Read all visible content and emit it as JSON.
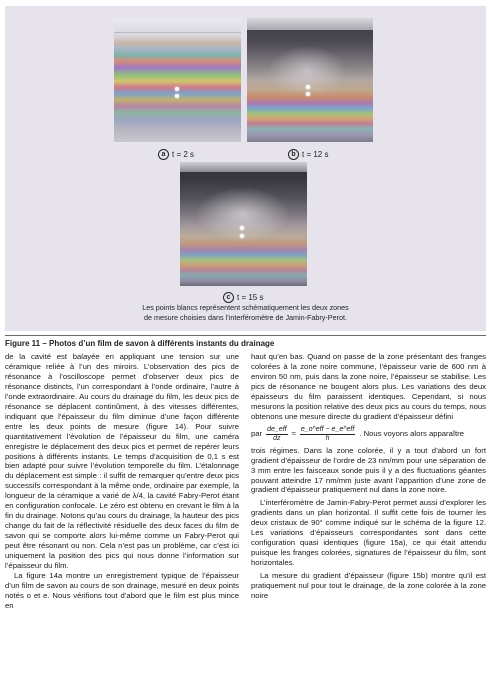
{
  "figure": {
    "panels": [
      {
        "letter": "a",
        "caption": "t = 2 s"
      },
      {
        "letter": "b",
        "caption": "t = 12 s"
      },
      {
        "letter": "c",
        "caption": "t = 15 s"
      }
    ],
    "note_line1": "Les points blancs représentent schématiquement les deux zones",
    "note_line2": "de mesure choisies dans l’interféromètre de Jamin-Fabry-Perot.",
    "title": "Figure 11 – Photos d’un film de savon à différents instants du drainage"
  },
  "left_column": {
    "p1": "de la cavité est balayée en appliquant une tension sur une céramique reliée à l’un des miroirs. L’observation des pics de résonance à l’oscilloscope permet d’observer deux pics de résonance distincts, l’un correspondant à l’onde ordinaire, l’autre à l’onde extraordinaire. Au cours du drainage du film, les deux pics de résonance se déplacent continûment, à des vitesses différentes, indiquant que l’épaisseur du film diminue d’une façon différente entre les deux points de mesure (figure 14). Pour suivre quantitativement l’évolution de l’épaisseur du film, une caméra enregistre le déplacement des deux pics et permet de repérer leurs positions à différents instants. Le temps d’acquisition de 0,1 s est bien adapté pour suivre l’évolution temporelle du film. L’étalonnage du déplacement est simple : il suffit de remarquer qu’entre deux pics successifs correspondant à la même onde, ordinaire par exemple, la longueur de la céramique a varié de λ/4, la cavité Fabry-Perot étant en configuration confocale. Le zéro est obtenu en crevant le film à la fin du drainage. Notons qu’au cours du drainage, la hauteur des pics change du fait de la réflectivité résiduelle des deux faces du film de savon qui se comporte alors lui-même comme un Fabry-Perot qui peut être résonant ou non. Cela n’est pas un problème, car c’est ici uniquement la position des pics qui nous donne l’information sur l’épaisseur du film.",
    "p2": "La figure 14a montre un enregistrement typique de l’épaisseur d’un film de savon au cours de son drainage, mesuré en deux points notés o et e. Nous vérifions tout d’abord que le film est plus mince en"
  },
  "right_column": {
    "p1": "haut qu’en bas. Quand on passe de la zone présentant des franges colorées à la zone noire commune, l’épaisseur varie de 600 nm à environ 50 nm, puis dans la zone noire, l’épaisseur se stabilise. Les pics de résonance ne bougent alors plus. Les variations des deux épaisseurs du film paraissent identiques. Cependant, si nous mesurons la position relative des deux pics au cours du temps, nous obtenons une mesure directe du gradient d’épaisseur défini",
    "eq_prefix": "par",
    "eq_lhs_num": "de_eff",
    "eq_lhs_den": "dz",
    "eq_approx": "≈",
    "eq_rhs_num": "e_o^eff − e_e^eff",
    "eq_rhs_den": "h",
    "eq_suffix": ". Nous voyons alors apparaître",
    "p2": "trois régimes. Dans la zone colorée, il y a tout d’abord un fort gradient d’épaisseur de l’ordre de 23 nm/mm pour une séparation de 3 mm entre les faisceaux sonde puis il y a des fluctuations géantes pouvant atteindre 17 nm/mm juste avant l’apparition d’une zone de gradient d’épaisseur pratiquement nul dans la zone noire.",
    "p3": "L’interféromètre de Jamin-Fabry-Perot permet aussi d’explorer les gradients dans un plan horizontal. Il suffit cette fois de tourner les deux cristaux de 90° comme indiqué sur le schéma de la figure 12. Les variations d’épaisseurs correspondantes sont dans cette configuration quasi identiques (figure 15a), ce qui était attendu puisque les franges colorées, signatures de l’épaisseur du film, sont horizontales.",
    "p4": "La mesure du gradient d’épaisseur (figure 15b) montre qu’il est pratiquement nul pour tout le drainage, de la zone colorée à la zone noire"
  }
}
